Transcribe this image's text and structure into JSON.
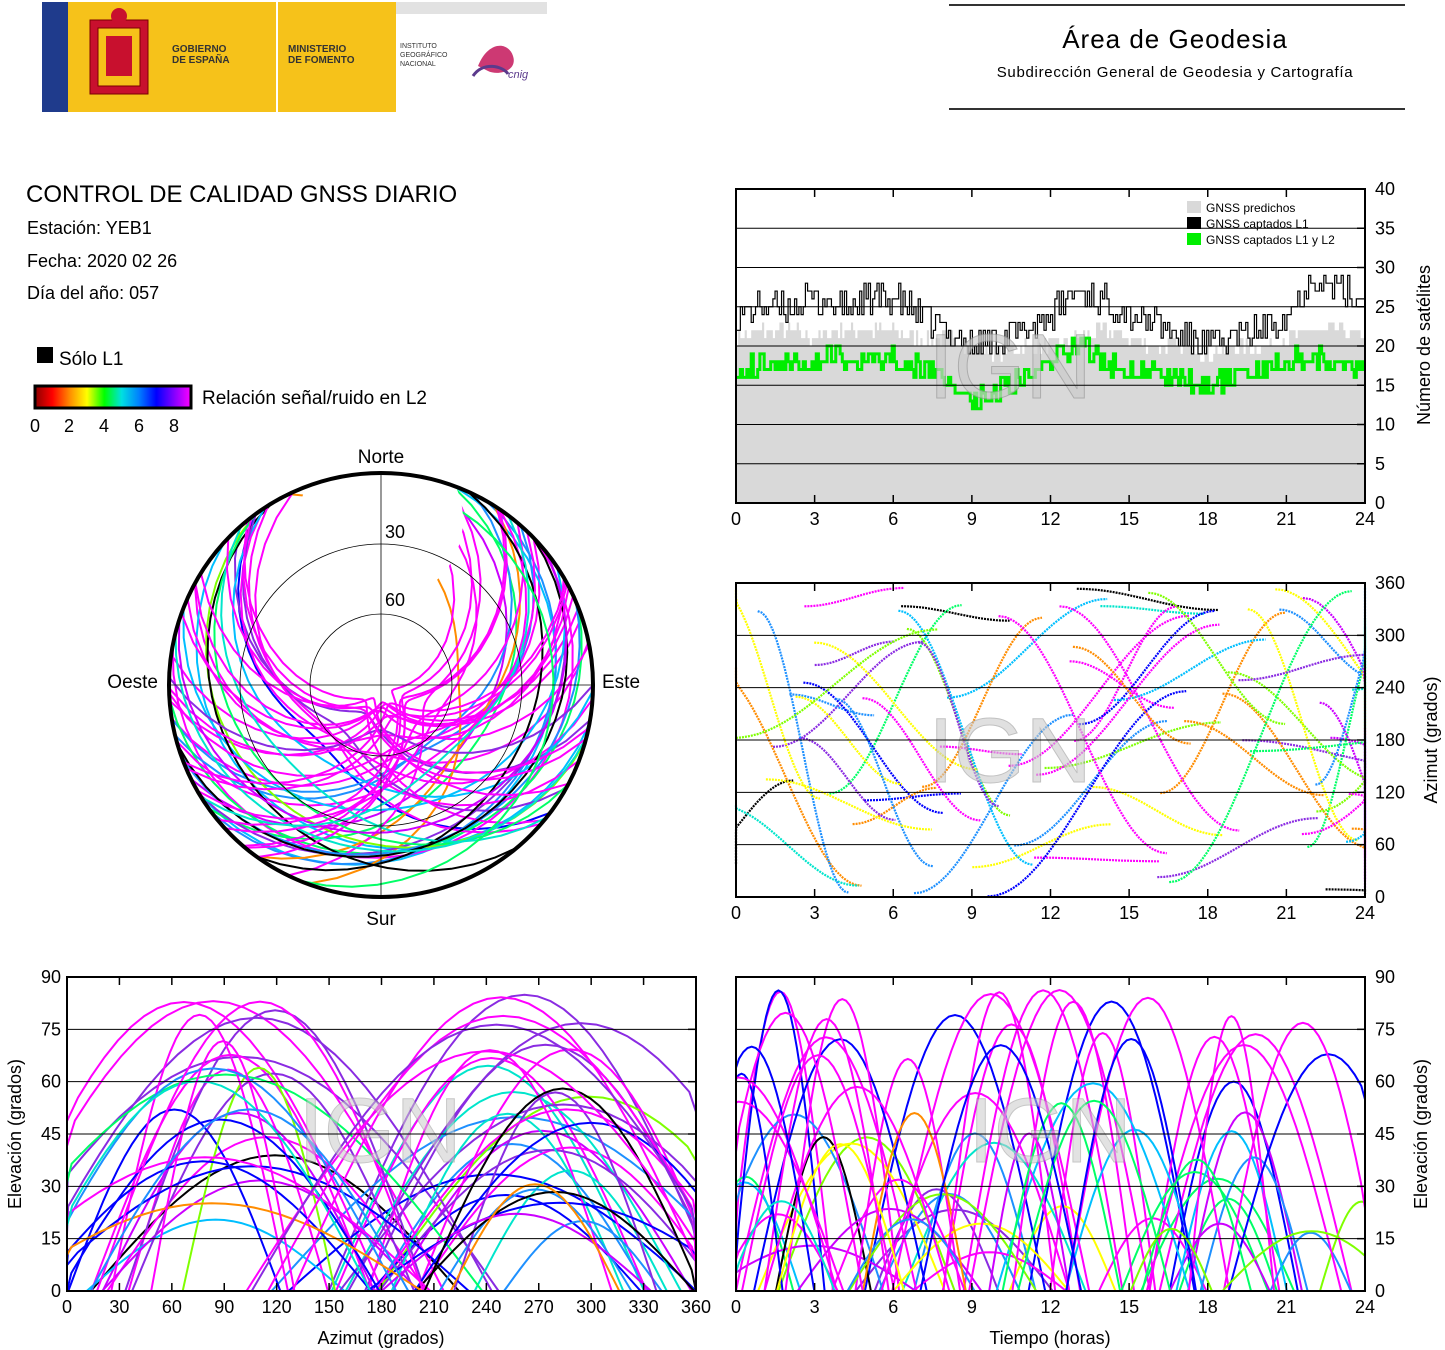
{
  "header": {
    "gov_line1": "GOBIERNO",
    "gov_line2": "DE ESPAÑA",
    "ministry_line1": "MINISTERIO",
    "ministry_line2": "DE FOMENTO",
    "institute_line1": "INSTITUTO",
    "institute_line2": "GEOGRÁFICO",
    "institute_line3": "NACIONAL",
    "cnig_logo_text": "cnig",
    "area_title": "Área de Geodesia",
    "area_subtitle": "Subdirección General de Geodesia y Cartografía"
  },
  "report": {
    "title": "CONTROL DE CALIDAD GNSS DIARIO",
    "station": "Estación: YEB1",
    "date": "Fecha: 2020 02 26",
    "doy": "Día del año: 057"
  },
  "color_legend": {
    "only_l1_label": "Sólo L1",
    "snr_label": "Relación señal/ruido en L2",
    "ticks": [
      "0",
      "2",
      "4",
      "6",
      "8"
    ],
    "gradient_colors": [
      "#8b0000",
      "#ff0000",
      "#ff8c00",
      "#ffff00",
      "#00ff00",
      "#00e0e0",
      "#0080ff",
      "#0000ff",
      "#8000ff",
      "#ff00ff"
    ]
  },
  "watermark": "IGN",
  "colors": {
    "only_l1": "#000000",
    "predicted": "#d9d9d9",
    "captured_l1": "#000000",
    "captured_l1_l2": "#00ee00"
  },
  "chart_data": [
    {
      "type": "polar",
      "id": "skyplot",
      "title": "",
      "cardinal_labels": {
        "north": "Norte",
        "south": "Sur",
        "east": "Este",
        "west": "Oeste"
      },
      "elevation_rings": [
        30,
        60
      ],
      "description_visible": "satellite tracks colored by L2 SNR"
    },
    {
      "type": "area",
      "id": "satellite-count",
      "x_range": [
        0,
        24
      ],
      "y_range": [
        0,
        40
      ],
      "xticks": [
        "0",
        "3",
        "6",
        "9",
        "12",
        "15",
        "18",
        "21",
        "24"
      ],
      "yticks": [
        "0",
        "5",
        "10",
        "15",
        "20",
        "25",
        "30",
        "35",
        "40"
      ],
      "ylabel": "Número de satélites",
      "legend_position": "top-right",
      "series": [
        {
          "name": "GNSS predichos",
          "x": [
            0,
            1,
            2,
            3,
            4,
            5,
            6,
            7,
            8,
            9,
            10,
            11,
            12,
            13,
            14,
            15,
            16,
            17,
            18,
            19,
            20,
            21,
            22,
            23,
            24
          ],
          "values": [
            21,
            22,
            22,
            21,
            22,
            22,
            22,
            21,
            21,
            20,
            19,
            20,
            20,
            21,
            22,
            21,
            20,
            20,
            19,
            20,
            20,
            21,
            22,
            22,
            21
          ]
        },
        {
          "name": "GNSS captados L1",
          "x": [
            0,
            1,
            2,
            3,
            4,
            5,
            6,
            7,
            8,
            9,
            10,
            11,
            12,
            13,
            14,
            15,
            16,
            17,
            18,
            19,
            20,
            21,
            22,
            23,
            24
          ],
          "values": [
            24,
            25,
            25,
            26,
            25,
            26,
            26,
            24,
            22,
            20,
            21,
            22,
            24,
            27,
            26,
            24,
            23,
            21,
            20,
            21,
            22,
            24,
            29,
            27,
            26
          ]
        },
        {
          "name": "GNSS captados L1 y L2",
          "x": [
            0,
            1,
            2,
            3,
            4,
            5,
            6,
            7,
            8,
            9,
            10,
            11,
            12,
            13,
            14,
            15,
            16,
            17,
            18,
            19,
            20,
            21,
            22,
            23,
            24
          ],
          "values": [
            17,
            18,
            18,
            18,
            19,
            18,
            19,
            17,
            16,
            13,
            14,
            16,
            18,
            20,
            18,
            17,
            17,
            16,
            15,
            16,
            17,
            18,
            19,
            18,
            16
          ]
        }
      ]
    },
    {
      "type": "scatter",
      "id": "azimuth-vs-time",
      "x_range": [
        0,
        24
      ],
      "y_range": [
        0,
        360
      ],
      "xticks": [
        "0",
        "3",
        "6",
        "9",
        "12",
        "15",
        "18",
        "21",
        "24"
      ],
      "yticks": [
        "0",
        "60",
        "120",
        "180",
        "240",
        "300",
        "360"
      ],
      "ylabel": "Azimut (grados)"
    },
    {
      "type": "scatter",
      "id": "elevation-vs-azimuth",
      "x_range": [
        0,
        360
      ],
      "y_range": [
        0,
        90
      ],
      "xticks": [
        "0",
        "30",
        "60",
        "90",
        "120",
        "150",
        "180",
        "210",
        "240",
        "270",
        "300",
        "330",
        "360"
      ],
      "yticks": [
        "0",
        "15",
        "30",
        "45",
        "60",
        "75",
        "90"
      ],
      "xlabel": "Azimut (grados)",
      "ylabel": "Elevación (grados)"
    },
    {
      "type": "scatter",
      "id": "elevation-vs-time",
      "x_range": [
        0,
        24
      ],
      "y_range": [
        0,
        90
      ],
      "xticks": [
        "0",
        "3",
        "6",
        "9",
        "12",
        "15",
        "18",
        "21",
        "24"
      ],
      "yticks": [
        "0",
        "15",
        "30",
        "45",
        "60",
        "75",
        "90"
      ],
      "xlabel": "Tiempo (horas)",
      "ylabel": "Elevación (grados)"
    }
  ]
}
